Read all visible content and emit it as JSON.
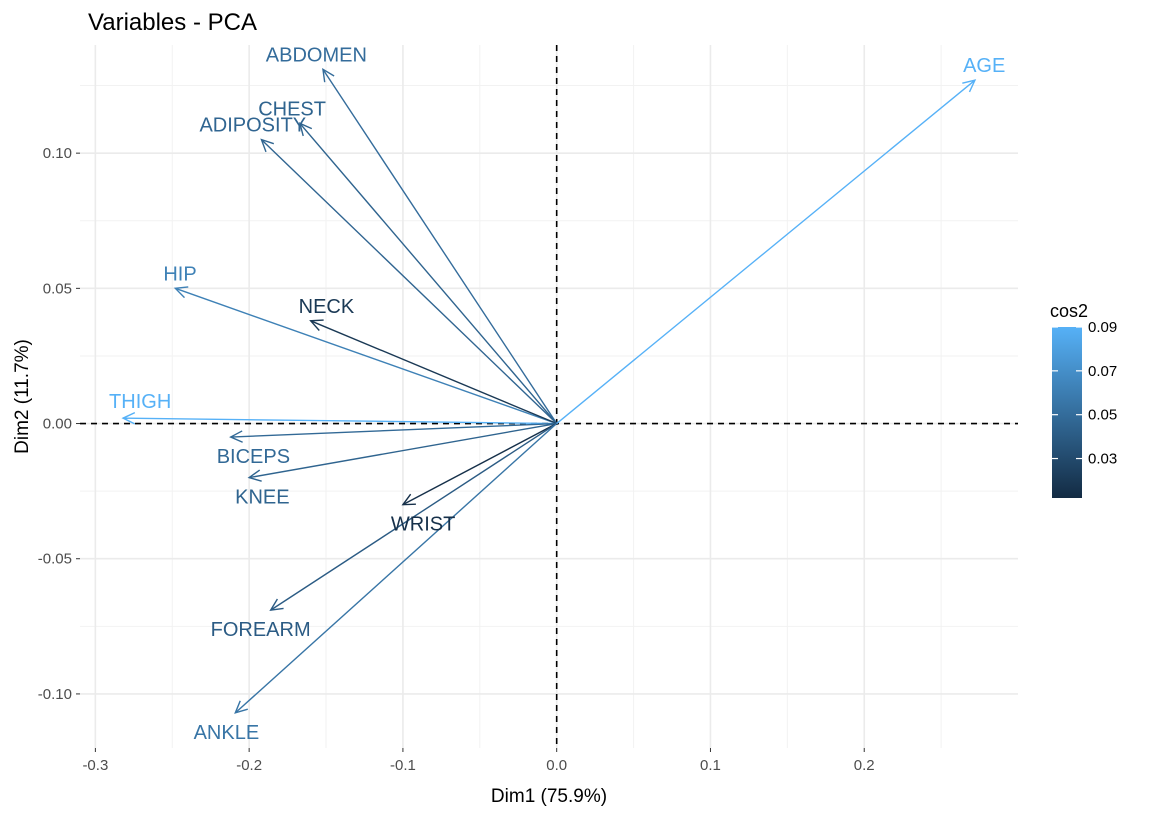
{
  "chart_data": {
    "type": "pca-variable-arrows",
    "title": "Variables - PCA",
    "xlabel": "Dim1 (75.9%)",
    "ylabel": "Dim2 (11.7%)",
    "xlim": [
      -0.31,
      0.3
    ],
    "ylim": [
      -0.12,
      0.14
    ],
    "x_ticks": [
      -0.3,
      -0.2,
      -0.1,
      0.0,
      0.1,
      0.2
    ],
    "x_tick_labels": [
      "-0.3",
      "-0.2",
      "-0.1",
      "0.0",
      "0.1",
      "0.2"
    ],
    "y_ticks": [
      -0.1,
      -0.05,
      0.0,
      0.05,
      0.1
    ],
    "y_tick_labels": [
      "-0.10",
      "-0.05",
      "0.00",
      "0.05",
      "0.10"
    ],
    "grid": true,
    "reference_lines": {
      "x": 0,
      "y": 0,
      "style": "dashed"
    },
    "color_scale": {
      "name": "cos2",
      "min": 0.012,
      "max": 0.09,
      "low_color": "#132B43",
      "high_color": "#56B1F7",
      "ticks": [
        0.03,
        0.05,
        0.07,
        0.09
      ],
      "tick_labels": [
        "0.03",
        "0.05",
        "0.07",
        "0.09"
      ]
    },
    "legend_position": "right",
    "variables": [
      {
        "name": "ABDOMEN",
        "x": -0.152,
        "y": 0.131,
        "cos2": 0.05
      },
      {
        "name": "CHEST",
        "x": -0.167,
        "y": 0.111,
        "cos2": 0.045
      },
      {
        "name": "ADIPOSITY",
        "x": -0.192,
        "y": 0.105,
        "cos2": 0.046
      },
      {
        "name": "HIP",
        "x": -0.248,
        "y": 0.05,
        "cos2": 0.062
      },
      {
        "name": "NECK",
        "x": -0.16,
        "y": 0.038,
        "cos2": 0.02
      },
      {
        "name": "THIGH",
        "x": -0.282,
        "y": 0.002,
        "cos2": 0.09
      },
      {
        "name": "BICEPS",
        "x": -0.212,
        "y": -0.005,
        "cos2": 0.048
      },
      {
        "name": "KNEE",
        "x": -0.2,
        "y": -0.02,
        "cos2": 0.045
      },
      {
        "name": "WRIST",
        "x": -0.1,
        "y": -0.03,
        "cos2": 0.015
      },
      {
        "name": "FOREARM",
        "x": -0.186,
        "y": -0.069,
        "cos2": 0.04
      },
      {
        "name": "ANKLE",
        "x": -0.209,
        "y": -0.107,
        "cos2": 0.055
      },
      {
        "name": "AGE",
        "x": 0.272,
        "y": 0.127,
        "cos2": 0.09
      }
    ]
  }
}
